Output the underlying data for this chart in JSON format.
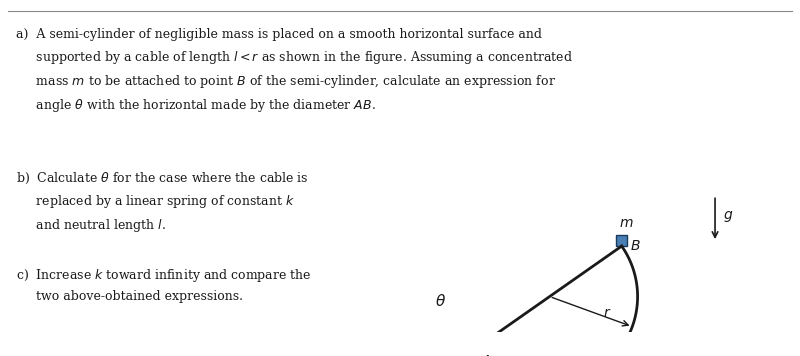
{
  "bg_color": "#ffffff",
  "text_color": "#1a1a1a",
  "fig_width": 8.0,
  "fig_height": 3.56,
  "text_a": "a)  A semi-cylinder of negligible mass is placed on a smooth horizontal surface and\n     supported by a cable of length $l < r$ as shown in the figure. Assuming a concentrated\n     mass $m$ to be attached to point $B$ of the semi-cylinder, calculate an expression for\n     angle $\\theta$ with the horizontal made by the diameter $AB$.",
  "text_b": "b)  Calculate $\\theta$ for the case where the cable is\n     replaced by a linear spring of constant $k$\n     and neutral length $l$.",
  "text_c": "c)  Increase $k$ toward infinity and compare the\n     two above-obtained expressions.",
  "semi_color": "#1a1a1a",
  "cable_color": "#cc0000",
  "mass_color": "#4a7fb5",
  "ground_color": "#333333",
  "dot_color": "#555555",
  "theta_deg": 35
}
